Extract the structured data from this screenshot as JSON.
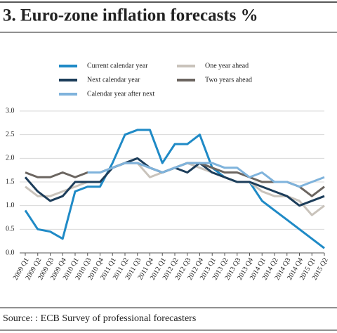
{
  "chart_data": {
    "type": "line",
    "title": "3. Euro-zone inflation forecasts %",
    "source": "Source: : ECB Survey of professional forecasters",
    "categories": [
      "2009 Q1",
      "2009 Q2",
      "2009 Q3",
      "2009 Q4",
      "2010 Q1",
      "2010 Q3",
      "2010 Q4",
      "2011 Q1",
      "2011 Q2",
      "2011 Q3",
      "2011 Q4",
      "2012 Q1",
      "2012 Q2",
      "2012 Q3",
      "2012 Q4",
      "2013 Q1",
      "2013 Q2",
      "2013 Q3",
      "2013 Q4",
      "2014 Q1",
      "2014 Q2",
      "2014 Q3",
      "2014 Q4",
      "2015 Q1",
      "2015 Q2"
    ],
    "series": [
      {
        "name": "Current calendar year",
        "color": "#1f8ac6",
        "values": [
          0.9,
          0.5,
          0.45,
          0.3,
          1.3,
          1.4,
          1.4,
          1.9,
          2.5,
          2.6,
          2.6,
          1.9,
          2.3,
          2.3,
          2.5,
          1.8,
          1.6,
          1.5,
          1.5,
          1.1,
          0.9,
          0.7,
          0.5,
          0.3,
          0.1
        ]
      },
      {
        "name": "One year ahead",
        "color": "#c9c3bb",
        "values": [
          1.4,
          1.2,
          1.2,
          1.3,
          1.4,
          1.5,
          1.5,
          1.8,
          1.9,
          1.9,
          1.6,
          1.7,
          1.8,
          1.9,
          1.8,
          1.7,
          1.6,
          1.5,
          1.5,
          1.3,
          1.2,
          1.2,
          1.1,
          0.8,
          1.0
        ]
      },
      {
        "name": "Next calendar year",
        "color": "#1c3d5a",
        "values": [
          1.6,
          1.3,
          1.1,
          1.2,
          1.5,
          1.5,
          1.5,
          1.8,
          1.9,
          2.0,
          1.8,
          1.7,
          1.8,
          1.7,
          1.9,
          1.7,
          1.6,
          1.5,
          1.5,
          1.4,
          1.3,
          1.2,
          1.0,
          1.1,
          1.2
        ]
      },
      {
        "name": "Two years ahead",
        "color": "#6b6560",
        "values": [
          1.7,
          1.6,
          1.6,
          1.7,
          1.6,
          1.7,
          1.7,
          1.8,
          1.9,
          1.9,
          1.8,
          1.7,
          1.8,
          1.9,
          1.9,
          1.8,
          1.7,
          1.7,
          1.6,
          1.5,
          1.5,
          1.5,
          1.4,
          1.2,
          1.4
        ]
      },
      {
        "name": "Calendar year after next",
        "color": "#7fb3dc",
        "values": [
          null,
          null,
          null,
          null,
          null,
          1.7,
          1.7,
          1.8,
          1.9,
          1.9,
          1.8,
          1.7,
          1.8,
          1.9,
          1.9,
          1.9,
          1.8,
          1.8,
          1.6,
          1.7,
          1.5,
          1.5,
          1.4,
          1.5,
          1.6
        ]
      }
    ],
    "ylim": [
      0,
      3
    ],
    "yticks": [
      {
        "value": 0,
        "label": "0.0"
      },
      0.5,
      {
        "value": 1,
        "label": "1.0"
      },
      1.5,
      {
        "value": 2,
        "label": "2.0"
      },
      2.5,
      {
        "value": 3,
        "label": "3.0"
      }
    ],
    "grid": true
  }
}
